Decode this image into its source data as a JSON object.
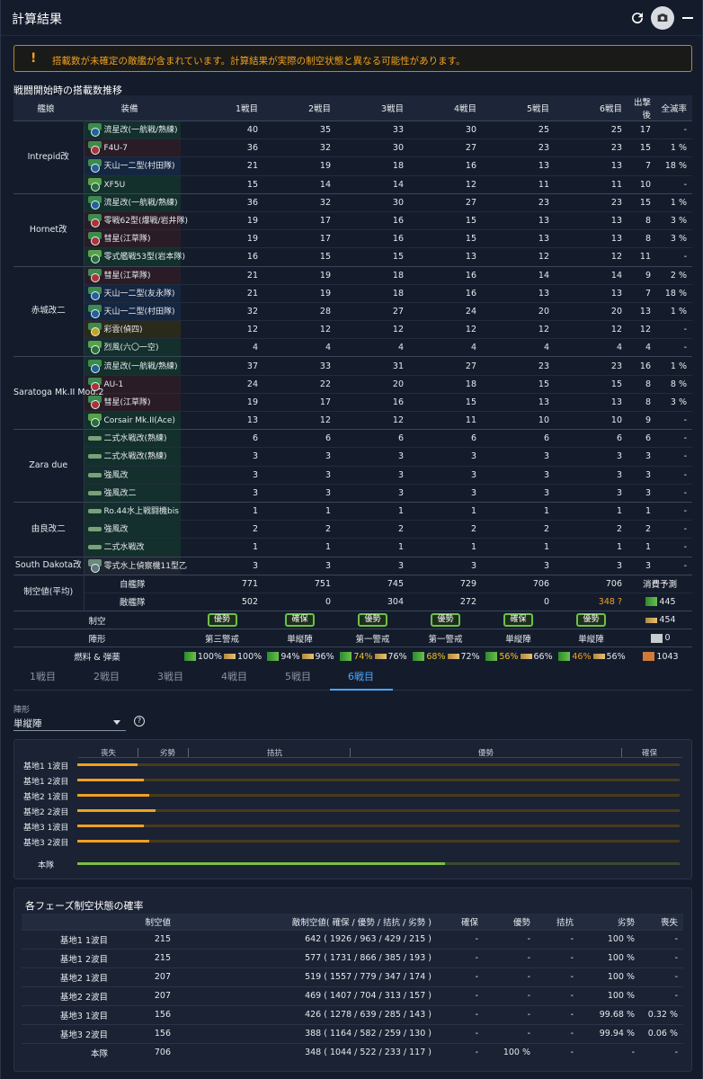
{
  "window": {
    "title": "計算結果"
  },
  "warning": {
    "icon": "!",
    "message": "搭載数が未確定の敵艦が含まれています。計算結果が実際の制空状態と異なる可能性があります。"
  },
  "slots_section": {
    "title": "戦闘開始時の搭載数推移",
    "headers": [
      "艦娘",
      "装備",
      "1戦目",
      "2戦目",
      "3戦目",
      "4戦目",
      "5戦目",
      "6戦目",
      "出撃後",
      "全滅率"
    ],
    "ships": [
      {
        "name": "Intrepid改",
        "rows": [
          {
            "icon": "fighter-icon",
            "bg": "f",
            "ic": "to",
            "name": "流星改(一航戦/熟練)",
            "vals": [
              "40",
              "35",
              "33",
              "30",
              "25",
              "25",
              "17",
              "-"
            ]
          },
          {
            "icon": "fighter-icon",
            "bg": "b",
            "ic": "bo",
            "name": "F4U-7",
            "vals": [
              "36",
              "32",
              "30",
              "27",
              "23",
              "23",
              "15",
              "1 %"
            ]
          },
          {
            "icon": "torpedo-icon",
            "bg": "t",
            "ic": "to",
            "name": "天山一二型(村田隊)",
            "vals": [
              "21",
              "19",
              "18",
              "16",
              "13",
              "13",
              "7",
              "18 %"
            ]
          },
          {
            "icon": "fighter-icon",
            "bg": "f",
            "ic": "fi",
            "name": "XF5U",
            "vals": [
              "15",
              "14",
              "14",
              "12",
              "11",
              "11",
              "10",
              "-"
            ]
          }
        ]
      },
      {
        "name": "Hornet改",
        "rows": [
          {
            "icon": "torpedo-icon",
            "bg": "f",
            "ic": "to",
            "name": "流星改(一航戦/熟練)",
            "vals": [
              "36",
              "32",
              "30",
              "27",
              "23",
              "23",
              "15",
              "1 %"
            ]
          },
          {
            "icon": "bomber-icon",
            "bg": "b",
            "ic": "bo",
            "name": "零戦62型(爆戦/岩井隊)",
            "vals": [
              "19",
              "17",
              "16",
              "15",
              "13",
              "13",
              "8",
              "3 %"
            ]
          },
          {
            "icon": "bomber-icon",
            "bg": "b",
            "ic": "bo",
            "name": "彗星(江草隊)",
            "vals": [
              "19",
              "17",
              "16",
              "15",
              "13",
              "13",
              "8",
              "3 %"
            ]
          },
          {
            "icon": "fighter-icon",
            "bg": "f",
            "ic": "fi",
            "name": "零式艦戦53型(岩本隊)",
            "vals": [
              "16",
              "15",
              "15",
              "13",
              "12",
              "12",
              "11",
              "-"
            ]
          }
        ]
      },
      {
        "name": "赤城改二",
        "rows": [
          {
            "icon": "bomber-icon",
            "bg": "b",
            "ic": "bo",
            "name": "彗星(江草隊)",
            "vals": [
              "21",
              "19",
              "18",
              "16",
              "14",
              "14",
              "9",
              "2 %"
            ]
          },
          {
            "icon": "torpedo-icon",
            "bg": "t",
            "ic": "to",
            "name": "天山一二型(友永隊)",
            "vals": [
              "21",
              "19",
              "18",
              "16",
              "13",
              "13",
              "7",
              "18 %"
            ]
          },
          {
            "icon": "torpedo-icon",
            "bg": "t",
            "ic": "to",
            "name": "天山一二型(村田隊)",
            "vals": [
              "32",
              "28",
              "27",
              "24",
              "20",
              "20",
              "13",
              "1 %"
            ]
          },
          {
            "icon": "jet-icon",
            "bg": "j",
            "ic": "jt",
            "name": "彩雲(偵四)",
            "vals": [
              "12",
              "12",
              "12",
              "12",
              "12",
              "12",
              "12",
              "-"
            ]
          },
          {
            "icon": "fighter-icon",
            "bg": "f",
            "ic": "fi",
            "name": "烈風(六〇一空)",
            "vals": [
              "4",
              "4",
              "4",
              "4",
              "4",
              "4",
              "4",
              "-"
            ]
          }
        ]
      },
      {
        "name": "Saratoga Mk.II Mod.2",
        "rows": [
          {
            "icon": "torpedo-icon",
            "bg": "f",
            "ic": "to",
            "name": "流星改(一航戦/熟練)",
            "vals": [
              "37",
              "33",
              "31",
              "27",
              "23",
              "23",
              "16",
              "1 %"
            ]
          },
          {
            "icon": "bomber-icon",
            "bg": "b",
            "ic": "bo",
            "name": "AU-1",
            "vals": [
              "24",
              "22",
              "20",
              "18",
              "15",
              "15",
              "8",
              "8 %"
            ]
          },
          {
            "icon": "bomber-icon",
            "bg": "b",
            "ic": "bo",
            "name": "彗星(江草隊)",
            "vals": [
              "19",
              "17",
              "16",
              "15",
              "13",
              "13",
              "8",
              "3 %"
            ]
          },
          {
            "icon": "fighter-icon",
            "bg": "f",
            "ic": "fi",
            "name": "Corsair Mk.II(Ace)",
            "vals": [
              "13",
              "12",
              "12",
              "11",
              "10",
              "10",
              "9",
              "-"
            ]
          }
        ]
      },
      {
        "name": "Zara due",
        "rows": [
          {
            "icon": "seaplane-icon",
            "bg": "f",
            "ic": "sp",
            "name": "二式水戦改(熟練)",
            "vals": [
              "6",
              "6",
              "6",
              "6",
              "6",
              "6",
              "6",
              "-"
            ]
          },
          {
            "icon": "seaplane-icon",
            "bg": "f",
            "ic": "sp",
            "name": "二式水戦改(熟練)",
            "vals": [
              "3",
              "3",
              "3",
              "3",
              "3",
              "3",
              "3",
              "-"
            ]
          },
          {
            "icon": "seaplane-icon",
            "bg": "f",
            "ic": "sp",
            "name": "強風改",
            "vals": [
              "3",
              "3",
              "3",
              "3",
              "3",
              "3",
              "3",
              "-"
            ]
          },
          {
            "icon": "seaplane-icon",
            "bg": "f",
            "ic": "sp",
            "name": "強風改二",
            "vals": [
              "3",
              "3",
              "3",
              "3",
              "3",
              "3",
              "3",
              "-"
            ]
          }
        ]
      },
      {
        "name": "由良改二",
        "rows": [
          {
            "icon": "seaplane-icon",
            "bg": "f",
            "ic": "sp",
            "name": "Ro.44水上戦闘機bis",
            "vals": [
              "1",
              "1",
              "1",
              "1",
              "1",
              "1",
              "1",
              "-"
            ]
          },
          {
            "icon": "seaplane-icon",
            "bg": "f",
            "ic": "sp",
            "name": "強風改",
            "vals": [
              "2",
              "2",
              "2",
              "2",
              "2",
              "2",
              "2",
              "-"
            ]
          },
          {
            "icon": "seaplane-icon",
            "bg": "f",
            "ic": "sp",
            "name": "二式水戦改",
            "vals": [
              "1",
              "1",
              "1",
              "1",
              "1",
              "1",
              "1",
              "-"
            ]
          }
        ]
      },
      {
        "name": "South Dakota改",
        "rows": [
          {
            "icon": "recon-seaplane-icon",
            "bg": "s",
            "ic": "rc",
            "name": "零式水上偵察機11型乙",
            "vals": [
              "3",
              "3",
              "3",
              "3",
              "3",
              "3",
              "3",
              "-"
            ]
          }
        ]
      }
    ],
    "air_power": {
      "label": "制空値(平均)",
      "ally_label": "自艦隊",
      "ally": [
        "771",
        "751",
        "745",
        "729",
        "706",
        "706"
      ],
      "enemy_label": "敵艦隊",
      "enemy": [
        "502",
        "0",
        "304",
        "272",
        "0",
        "348 ?"
      ],
      "consumption_label": "消費予測"
    },
    "air_state": {
      "label": "制空",
      "values": [
        "優勢",
        "確保",
        "優勢",
        "優勢",
        "確保",
        "優勢"
      ]
    },
    "formation": {
      "label": "陣形",
      "values": [
        "第三警戒",
        "単縦陣",
        "第一警戒",
        "第一警戒",
        "単縦陣",
        "単縦陣"
      ]
    },
    "resources": {
      "label": "燃料 & 弾薬",
      "fuel": [
        "100%",
        "94%",
        "74%",
        "68%",
        "56%",
        "46%"
      ],
      "ammo": [
        "100%",
        "96%",
        "76%",
        "72%",
        "66%",
        "56%"
      ]
    },
    "consumption": {
      "fuel": "445",
      "ammo": "454",
      "bauxite": "0",
      "steel": "1043"
    }
  },
  "tabs": [
    "1戦目",
    "2戦目",
    "3戦目",
    "4戦目",
    "5戦目",
    "6戦目"
  ],
  "selected_tab": "6戦目",
  "formation_select": {
    "label": "陣形",
    "value": "単縦陣",
    "help": "?"
  },
  "air_bar": {
    "headers": [
      "喪失",
      "劣勢",
      "拮抗",
      "優勢",
      "確保"
    ],
    "rows": [
      {
        "name": "基地1 1波目",
        "pct": 0.1
      },
      {
        "name": "基地1 2波目",
        "pct": 0.11
      },
      {
        "name": "基地2 1波目",
        "pct": 0.12
      },
      {
        "name": "基地2 2波目",
        "pct": 0.13
      },
      {
        "name": "基地3 1波目",
        "pct": 0.11
      },
      {
        "name": "基地3 2波目",
        "pct": 0.12
      }
    ],
    "main": {
      "name": "本隊",
      "pct": 0.61
    }
  },
  "phase_table": {
    "title": "各フェーズ制空状態の確率",
    "headers": [
      "",
      "制空値",
      "敵制空値( 確保 / 優勢 / 拮抗 / 劣勢 )",
      "確保",
      "優勢",
      "拮抗",
      "劣勢",
      "喪失"
    ],
    "rows": [
      [
        "基地1 1波目",
        "215",
        "642 ( 1926 / 963 / 429 / 215 )",
        "-",
        "-",
        "-",
        "100 %",
        "-"
      ],
      [
        "基地1 2波目",
        "215",
        "577 ( 1731 / 866 / 385 / 193 )",
        "-",
        "-",
        "-",
        "100 %",
        "-"
      ],
      [
        "基地2 1波目",
        "207",
        "519 ( 1557 / 779 / 347 / 174 )",
        "-",
        "-",
        "-",
        "100 %",
        "-"
      ],
      [
        "基地2 2波目",
        "207",
        "469 ( 1407 / 704 / 313 / 157 )",
        "-",
        "-",
        "-",
        "100 %",
        "-"
      ],
      [
        "基地3 1波目",
        "156",
        "426 ( 1278 / 639 / 285 / 143 )",
        "-",
        "-",
        "-",
        "99.68 %",
        "0.32 %"
      ],
      [
        "基地3 2波目",
        "156",
        "388 ( 1164 / 582 / 259 / 130 )",
        "-",
        "-",
        "-",
        "99.94 %",
        "0.06 %"
      ],
      [
        "本隊",
        "706",
        "348 ( 1044 / 522 / 233 / 117 )",
        "-",
        "100 %",
        "-",
        "-",
        "-"
      ]
    ]
  },
  "colors": {
    "accent": "#4aa8ff",
    "warning": "#f0a020",
    "good": "#6cc048"
  }
}
